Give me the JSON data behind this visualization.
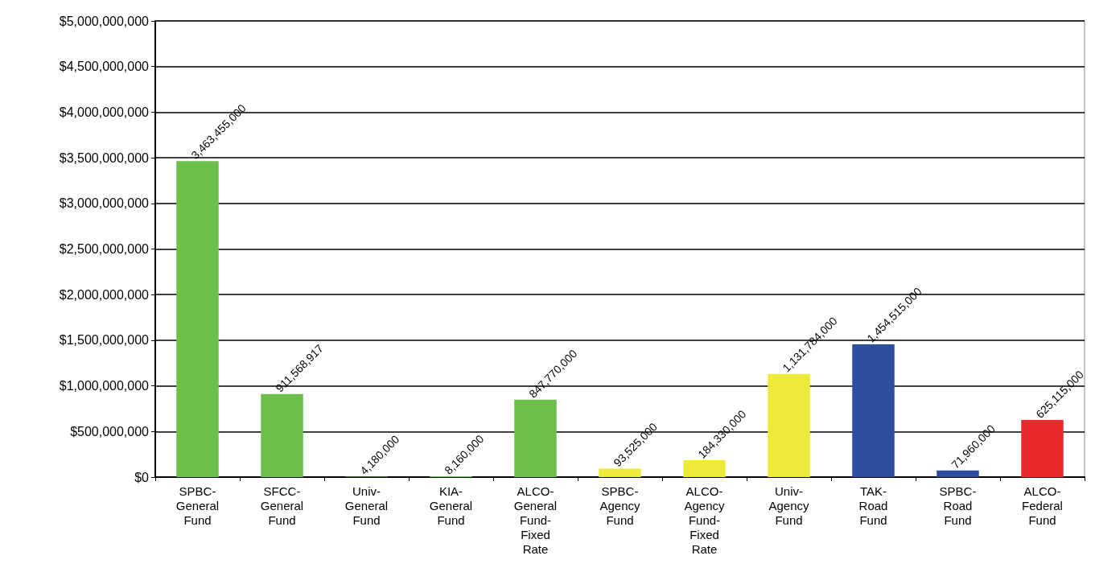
{
  "chart_data": {
    "type": "bar",
    "categories": [
      "SPBC-General Fund",
      "SFCC-General Fund",
      "Univ-General Fund",
      "KIA-General Fund",
      "ALCO-General Fund-Fixed Rate",
      "SPBC-Agency Fund",
      "ALCO-Agency Fund-Fixed Rate",
      "Univ-Agency Fund",
      "TAK-Road Fund",
      "SPBC-Road Fund",
      "ALCO-Federal Fund"
    ],
    "values": [
      3463455000,
      911568917,
      4180000,
      8160000,
      847770000,
      93525000,
      184330000,
      1131784000,
      1454515000,
      71960000,
      625115000
    ],
    "colors": [
      "#6cbf4a",
      "#6cbf4a",
      "#6cbf4a",
      "#6cbf4a",
      "#6cbf4a",
      "#eeea3c",
      "#eeea3c",
      "#eeea3c",
      "#2e4f9f",
      "#2e4f9f",
      "#e82a2a"
    ],
    "ylim": [
      0,
      5000000000
    ],
    "yticks": [
      {
        "value": 0,
        "label": "$0"
      },
      {
        "value": 500000000,
        "label": "$500,000,000"
      },
      {
        "value": 1000000000,
        "label": "$1,000,000,000"
      },
      {
        "value": 1500000000,
        "label": "$1,500,000,000"
      },
      {
        "value": 2000000000,
        "label": "$2,000,000,000"
      },
      {
        "value": 2500000000,
        "label": "$2,500,000,000"
      },
      {
        "value": 3000000000,
        "label": "$3,000,000,000"
      },
      {
        "value": 3500000000,
        "label": "$3,500,000,000"
      },
      {
        "value": 4000000000,
        "label": "$4,000,000,000"
      },
      {
        "value": 4500000000,
        "label": "$4,500,000,000"
      },
      {
        "value": 5000000000,
        "label": "$5,000,000,000"
      }
    ],
    "value_labels": [
      "3,463,455,000",
      "911,568,917",
      "4,180,000",
      "8,160,000",
      "847,770,000",
      "93,525,000",
      "184,330,000",
      "1,131,784,000",
      "1,454,515,000",
      "71,960,000",
      "625,115,000"
    ],
    "grid": "y"
  }
}
